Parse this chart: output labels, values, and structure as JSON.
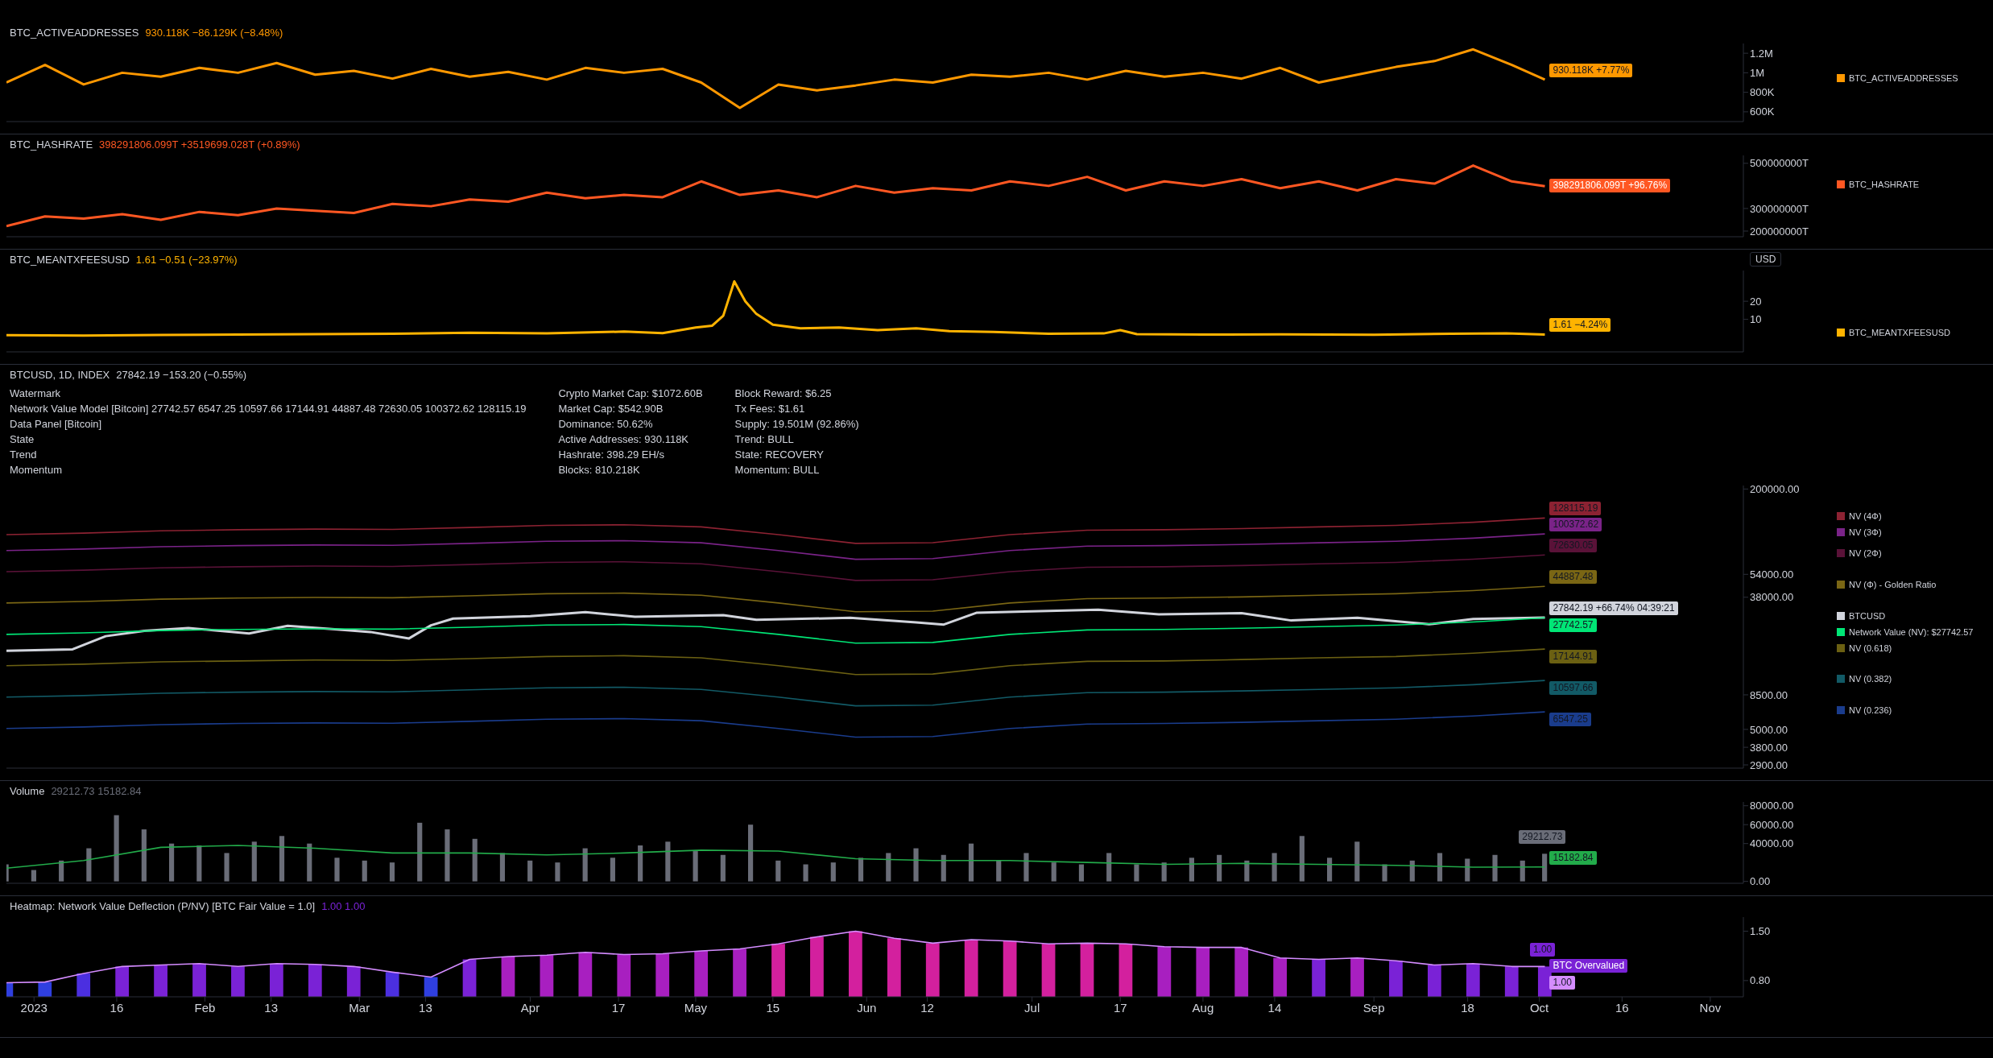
{
  "chart_data": [
    {
      "type": "line",
      "legend": "right",
      "title": "BTC_ACTIVEADDRESSES",
      "subtitle": "930.118K −86.129K (−8.48%)",
      "tick_labels": "y",
      "xlim": [
        "2022-12-27",
        "2023-11-07"
      ],
      "ylim": [
        500000,
        1300000
      ],
      "yticks": [
        {
          "value": 600000,
          "label": "600K"
        },
        {
          "value": 800000,
          "label": "800K"
        },
        {
          "value": 1000000,
          "label": "1M"
        },
        {
          "value": 1200000,
          "label": "1.2M"
        }
      ],
      "x": [
        "2022-12-27",
        "2023-01-03",
        "2023-01-10",
        "2023-01-17",
        "2023-01-24",
        "2023-01-31",
        "2023-02-07",
        "2023-02-14",
        "2023-02-21",
        "2023-02-28",
        "2023-03-07",
        "2023-03-14",
        "2023-03-21",
        "2023-03-28",
        "2023-04-04",
        "2023-04-11",
        "2023-04-18",
        "2023-04-25",
        "2023-05-02",
        "2023-05-09",
        "2023-05-16",
        "2023-05-23",
        "2023-05-30",
        "2023-06-06",
        "2023-06-13",
        "2023-06-20",
        "2023-06-27",
        "2023-07-04",
        "2023-07-11",
        "2023-07-18",
        "2023-07-25",
        "2023-08-01",
        "2023-08-08",
        "2023-08-15",
        "2023-08-22",
        "2023-08-29",
        "2023-09-05",
        "2023-09-12",
        "2023-09-19",
        "2023-09-26",
        "2023-10-02"
      ],
      "series": [
        {
          "name": "BTC_ACTIVEADDRESSES",
          "color": "#ff9800",
          "values": [
            900000,
            1080000,
            880000,
            1000000,
            960000,
            1050000,
            1000000,
            1100000,
            980000,
            1020000,
            940000,
            1040000,
            960000,
            1010000,
            930000,
            1050000,
            1000000,
            1040000,
            900000,
            640000,
            880000,
            820000,
            870000,
            930000,
            900000,
            980000,
            960000,
            1000000,
            930000,
            1020000,
            960000,
            1000000,
            940000,
            1050000,
            900000,
            980000,
            1060000,
            1120000,
            1240000,
            1080000,
            930118
          ],
          "value_labels": [
            null,
            null,
            null,
            null,
            null,
            null,
            null,
            null,
            null,
            null,
            null,
            null,
            null,
            null,
            null,
            null,
            null,
            null,
            null,
            null,
            null,
            null,
            null,
            null,
            null,
            null,
            null,
            null,
            null,
            null,
            null,
            null,
            null,
            null,
            null,
            null,
            null,
            null,
            null,
            null,
            "930.118K +7.77%"
          ]
        }
      ]
    },
    {
      "type": "line",
      "legend": "right",
      "title": "BTC_HASHRATE",
      "subtitle": "398291806.099T +3519699.028T (+0.89%)",
      "tick_labels": "y",
      "xlim": [
        "2022-12-27",
        "2023-11-07"
      ],
      "ylim": [
        175000000,
        535000000
      ],
      "yticks": [
        {
          "value": 200000000,
          "label": "200000000T"
        },
        {
          "value": 300000000,
          "label": "300000000T"
        },
        {
          "value": 500000000,
          "label": "500000000T"
        }
      ],
      "x": [
        "2022-12-27",
        "2023-01-03",
        "2023-01-10",
        "2023-01-17",
        "2023-01-24",
        "2023-01-31",
        "2023-02-07",
        "2023-02-14",
        "2023-02-21",
        "2023-02-28",
        "2023-03-07",
        "2023-03-14",
        "2023-03-21",
        "2023-03-28",
        "2023-04-04",
        "2023-04-11",
        "2023-04-18",
        "2023-04-25",
        "2023-05-02",
        "2023-05-09",
        "2023-05-16",
        "2023-05-23",
        "2023-05-30",
        "2023-06-06",
        "2023-06-13",
        "2023-06-20",
        "2023-06-27",
        "2023-07-04",
        "2023-07-11",
        "2023-07-18",
        "2023-07-25",
        "2023-08-01",
        "2023-08-08",
        "2023-08-15",
        "2023-08-22",
        "2023-08-29",
        "2023-09-05",
        "2023-09-12",
        "2023-09-19",
        "2023-09-26",
        "2023-10-02"
      ],
      "series": [
        {
          "name": "BTC_HASHRATE",
          "color": "#ff5722",
          "values": [
            222000000,
            265000000,
            255000000,
            275000000,
            250000000,
            285000000,
            270000000,
            300000000,
            290000000,
            280000000,
            320000000,
            310000000,
            340000000,
            330000000,
            370000000,
            345000000,
            360000000,
            350000000,
            420000000,
            360000000,
            380000000,
            350000000,
            400000000,
            370000000,
            390000000,
            380000000,
            420000000,
            400000000,
            440000000,
            380000000,
            420000000,
            400000000,
            430000000,
            390000000,
            420000000,
            380000000,
            430000000,
            410000000,
            490000000,
            420000000,
            398291806.099
          ]
        }
      ],
      "annotations": [
        {
          "text": "398291806.099T +96.76%",
          "x": "2023-10-02",
          "y": 398291806.099
        }
      ]
    },
    {
      "type": "line",
      "legend": "right",
      "title": "BTC_MEANTXFEESUSD",
      "subtitle": "1.61 −0.51 (−23.97%)",
      "ylabel": "USD",
      "tick_labels": "y",
      "xlim": [
        "2022-12-27",
        "2023-11-07"
      ],
      "ylim": [
        -8,
        37
      ],
      "yticks": [
        10,
        20
      ],
      "x": [
        "2022-12-27",
        "2023-01-10",
        "2023-01-24",
        "2023-02-07",
        "2023-02-21",
        "2023-03-07",
        "2023-03-21",
        "2023-04-04",
        "2023-04-18",
        "2023-04-25",
        "2023-05-01",
        "2023-05-04",
        "2023-05-06",
        "2023-05-08",
        "2023-05-10",
        "2023-05-12",
        "2023-05-15",
        "2023-05-20",
        "2023-05-27",
        "2023-06-03",
        "2023-06-10",
        "2023-06-16",
        "2023-06-24",
        "2023-07-04",
        "2023-07-14",
        "2023-07-17",
        "2023-07-20",
        "2023-08-01",
        "2023-08-15",
        "2023-09-01",
        "2023-09-15",
        "2023-09-25",
        "2023-10-02"
      ],
      "series": [
        {
          "name": "BTC_MEANTXFEESUSD",
          "color": "#ffb300",
          "values": [
            1.2,
            1.0,
            1.4,
            1.6,
            1.8,
            2.0,
            2.6,
            2.2,
            3.2,
            2.4,
            5.5,
            6.5,
            12,
            31,
            20,
            13,
            7,
            5,
            5.5,
            4,
            5,
            3.5,
            3,
            2,
            2.2,
            4,
            1.8,
            1.6,
            1.7,
            1.5,
            2.0,
            2.2,
            1.61
          ],
          "value_labels": [
            null,
            null,
            null,
            null,
            null,
            null,
            null,
            null,
            null,
            null,
            null,
            null,
            null,
            null,
            null,
            null,
            null,
            null,
            null,
            null,
            null,
            null,
            null,
            null,
            null,
            null,
            null,
            null,
            null,
            null,
            null,
            null,
            "1.61 −4.24%"
          ]
        }
      ]
    },
    {
      "type": "line",
      "legend": "right",
      "title": "BTCUSD, 1D, INDEX",
      "subtitle": "27842.19 −153.20 (−0.55%)",
      "log": true,
      "tick_labels": "y",
      "xlim": [
        "2022-12-27",
        "2023-11-07"
      ],
      "ylim": [
        2760,
        211000
      ],
      "yticks": [
        {
          "value": 2900,
          "label": "2900.00"
        },
        {
          "value": 3800,
          "label": "3800.00"
        },
        {
          "value": 5000,
          "label": "5000.00"
        },
        {
          "value": 8500,
          "label": "8500.00"
        },
        {
          "value": 38000,
          "label": "38000.00"
        },
        {
          "value": 54000,
          "label": "54000.00"
        },
        {
          "value": 200000,
          "label": "200000.00"
        }
      ],
      "x": [
        "2022-12-27",
        "2023-01-10",
        "2023-01-24",
        "2023-02-07",
        "2023-02-21",
        "2023-03-07",
        "2023-03-21",
        "2023-04-04",
        "2023-04-18",
        "2023-05-02",
        "2023-05-16",
        "2023-05-30",
        "2023-06-13",
        "2023-06-27",
        "2023-07-11",
        "2023-07-25",
        "2023-08-08",
        "2023-08-22",
        "2023-09-05",
        "2023-09-19",
        "2023-10-02"
      ],
      "annotations": [
        "Watermark",
        "Network Value Model [Bitcoin] 27742.57 6547.25 10597.66 17144.91 44887.48 72630.05 100372.62 128115.19",
        "Data Panel [Bitcoin]",
        "State",
        "Trend",
        "Momentum",
        "Crypto Market Cap: $1072.60B",
        "Market Cap: $542.90B",
        "Dominance: 50.62%",
        "Active Addresses: 930.118K",
        "Hashrate: 398.29 EH/s",
        "Blocks: 810.218K",
        "Block Reward: $6.25",
        "Tx Fees: $1.61",
        "Supply: 19.501M (92.86%)",
        "Trend: BULL",
        "State: RECOVERY",
        "Momentum: BULL"
      ],
      "series": [
        {
          "name": "BTCUSD",
          "color": "#d1d4dc",
          "x": [
            "2022-12-27",
            "2023-01-08",
            "2023-01-14",
            "2023-01-21",
            "2023-01-29",
            "2023-02-09",
            "2023-02-16",
            "2023-02-25",
            "2023-03-03",
            "2023-03-10",
            "2023-03-14",
            "2023-03-18",
            "2023-04-01",
            "2023-04-11",
            "2023-04-20",
            "2023-04-26",
            "2023-05-06",
            "2023-05-12",
            "2023-05-29",
            "2023-06-10",
            "2023-06-15",
            "2023-06-21",
            "2023-07-01",
            "2023-07-13",
            "2023-07-24",
            "2023-08-08",
            "2023-08-17",
            "2023-08-29",
            "2023-09-11",
            "2023-09-19",
            "2023-10-02"
          ],
          "values": [
            16700,
            17100,
            20900,
            22700,
            23700,
            21800,
            24500,
            23200,
            22300,
            20200,
            24700,
            27400,
            28400,
            30200,
            28200,
            28400,
            28900,
            26900,
            27700,
            25800,
            25000,
            30000,
            30600,
            31400,
            29200,
            29800,
            26600,
            27700,
            25100,
            27200,
            27842.19
          ],
          "value_labels": [
            null,
            null,
            null,
            null,
            null,
            null,
            null,
            null,
            null,
            null,
            null,
            null,
            null,
            null,
            null,
            null,
            null,
            null,
            null,
            null,
            null,
            null,
            null,
            null,
            null,
            null,
            null,
            null,
            null,
            null,
            "27842.19 +66.74% 04:39:21"
          ]
        },
        {
          "name": "NV (4Φ)",
          "color": "#8c2232",
          "values": [
            99300,
            101600,
            105300,
            107100,
            108100,
            107600,
            110800,
            114500,
            115500,
            111800,
            99300,
            86800,
            87700,
            99300,
            106200,
            107100,
            109000,
            111800,
            114500,
            120100,
            128115.19
          ],
          "value_labels": [
            null,
            null,
            null,
            null,
            null,
            null,
            null,
            null,
            null,
            null,
            null,
            null,
            null,
            null,
            null,
            null,
            null,
            null,
            null,
            null,
            "128115.19"
          ]
        },
        {
          "name": "NV (3Φ)",
          "color": "#7a2388",
          "values": [
            77800,
            79600,
            82500,
            83900,
            84700,
            84300,
            86800,
            89700,
            90500,
            87600,
            77800,
            68000,
            68700,
            77800,
            83200,
            83900,
            85400,
            87600,
            89700,
            94100,
            100372.62
          ],
          "value_labels": [
            null,
            null,
            null,
            null,
            null,
            null,
            null,
            null,
            null,
            null,
            null,
            null,
            null,
            null,
            null,
            null,
            null,
            null,
            null,
            null,
            "100372.62"
          ]
        },
        {
          "name": "NV (2Φ)",
          "color": "#5a1238",
          "values": [
            56300,
            57600,
            59700,
            60700,
            61300,
            61000,
            62800,
            64900,
            65500,
            63400,
            56300,
            49200,
            49700,
            56300,
            60200,
            60700,
            61800,
            63400,
            64900,
            68100,
            72630.05
          ],
          "value_labels": [
            null,
            null,
            null,
            null,
            null,
            null,
            null,
            null,
            null,
            null,
            null,
            null,
            null,
            null,
            null,
            null,
            null,
            null,
            null,
            null,
            "72630.05"
          ]
        },
        {
          "name": "NV (Φ) - Golden Ratio",
          "color": "#7a6614",
          "values": [
            34800,
            35600,
            36900,
            37500,
            37900,
            37700,
            38800,
            40100,
            40500,
            39200,
            34800,
            30400,
            30700,
            34800,
            37200,
            37500,
            38200,
            39200,
            40100,
            42100,
            44887.48
          ],
          "value_labels": [
            null,
            null,
            null,
            null,
            null,
            null,
            null,
            null,
            null,
            null,
            null,
            null,
            null,
            null,
            null,
            null,
            null,
            null,
            null,
            null,
            "44887.48"
          ]
        },
        {
          "name": "Network Value (NV): $27742.57",
          "color": "#00e676",
          "values": [
            21500,
            22000,
            22800,
            23200,
            23400,
            23300,
            24000,
            24800,
            25000,
            24200,
            21500,
            18800,
            19000,
            21500,
            23000,
            23200,
            23600,
            24200,
            24800,
            26000,
            27742.57
          ],
          "value_labels": [
            null,
            null,
            null,
            null,
            null,
            null,
            null,
            null,
            null,
            null,
            null,
            null,
            null,
            null,
            null,
            null,
            null,
            null,
            null,
            null,
            "27742.57"
          ]
        },
        {
          "name": "NV (0.618)",
          "color": "#6b6012",
          "values": [
            13300,
            13600,
            14100,
            14300,
            14500,
            14400,
            14800,
            15300,
            15500,
            15000,
            13300,
            11600,
            11700,
            13300,
            14200,
            14300,
            14600,
            15000,
            15300,
            16100,
            17144.91
          ],
          "value_labels": [
            null,
            null,
            null,
            null,
            null,
            null,
            null,
            null,
            null,
            null,
            null,
            null,
            null,
            null,
            null,
            null,
            null,
            null,
            null,
            null,
            "17144.91"
          ]
        },
        {
          "name": "NV (0.382)",
          "color": "#125a66",
          "values": [
            8210,
            8400,
            8710,
            8860,
            8940,
            8900,
            9170,
            9470,
            9550,
            9240,
            8210,
            7180,
            7260,
            8210,
            8790,
            8860,
            9020,
            9240,
            9470,
            9930,
            10597.66
          ],
          "value_labels": [
            null,
            null,
            null,
            null,
            null,
            null,
            null,
            null,
            null,
            null,
            null,
            null,
            null,
            null,
            null,
            null,
            null,
            null,
            null,
            null,
            "10597.66"
          ]
        },
        {
          "name": "NV (0.236)",
          "color": "#1a3c8c",
          "values": [
            5070,
            5190,
            5380,
            5480,
            5520,
            5500,
            5660,
            5850,
            5900,
            5710,
            5070,
            4440,
            4480,
            5070,
            5430,
            5480,
            5570,
            5710,
            5850,
            6140,
            6547.25
          ],
          "value_labels": [
            null,
            null,
            null,
            null,
            null,
            null,
            null,
            null,
            null,
            null,
            null,
            null,
            null,
            null,
            null,
            null,
            null,
            null,
            null,
            null,
            "6547.25"
          ]
        }
      ]
    },
    {
      "type": "bar",
      "title": "Volume",
      "subtitle": "29212.73 15182.84",
      "tick_labels": "y",
      "xlim": [
        "2022-12-27",
        "2023-11-07"
      ],
      "ylim": [
        -2000,
        84000
      ],
      "yticks": [
        {
          "value": 0,
          "label": "0.00"
        },
        {
          "value": 40000,
          "label": "40000.00"
        },
        {
          "value": 60000,
          "label": "60000.00"
        },
        {
          "value": 80000,
          "label": "80000.00"
        }
      ],
      "x": [
        "2022-12-27",
        "2023-01-01",
        "2023-01-06",
        "2023-01-11",
        "2023-01-16",
        "2023-01-21",
        "2023-01-26",
        "2023-01-31",
        "2023-02-05",
        "2023-02-10",
        "2023-02-15",
        "2023-02-20",
        "2023-02-25",
        "2023-03-02",
        "2023-03-07",
        "2023-03-12",
        "2023-03-17",
        "2023-03-22",
        "2023-03-27",
        "2023-04-01",
        "2023-04-06",
        "2023-04-11",
        "2023-04-16",
        "2023-04-21",
        "2023-04-26",
        "2023-05-01",
        "2023-05-06",
        "2023-05-11",
        "2023-05-16",
        "2023-05-21",
        "2023-05-26",
        "2023-05-31",
        "2023-06-05",
        "2023-06-10",
        "2023-06-15",
        "2023-06-20",
        "2023-06-25",
        "2023-06-30",
        "2023-07-05",
        "2023-07-10",
        "2023-07-15",
        "2023-07-20",
        "2023-07-25",
        "2023-07-30",
        "2023-08-04",
        "2023-08-09",
        "2023-08-14",
        "2023-08-19",
        "2023-08-24",
        "2023-08-29",
        "2023-09-03",
        "2023-09-08",
        "2023-09-13",
        "2023-09-18",
        "2023-09-23",
        "2023-09-28",
        "2023-10-02"
      ],
      "series": [
        {
          "color": "#6a6d78",
          "values": [
            18000,
            12000,
            22000,
            35000,
            70000,
            55000,
            40000,
            38000,
            30000,
            42000,
            48000,
            40000,
            25000,
            22000,
            20000,
            62000,
            55000,
            45000,
            30000,
            22000,
            20000,
            35000,
            25000,
            38000,
            42000,
            32000,
            28000,
            60000,
            22000,
            18000,
            20000,
            25000,
            30000,
            35000,
            28000,
            40000,
            22000,
            30000,
            20000,
            18000,
            30000,
            18000,
            20000,
            25000,
            28000,
            22000,
            30000,
            48000,
            25000,
            42000,
            18000,
            22000,
            30000,
            24000,
            28000,
            22000,
            29212.73
          ],
          "value_labels": [
            null,
            null,
            null,
            null,
            null,
            null,
            null,
            null,
            null,
            null,
            null,
            null,
            null,
            null,
            null,
            null,
            null,
            null,
            null,
            null,
            null,
            null,
            null,
            null,
            null,
            null,
            null,
            null,
            null,
            null,
            null,
            null,
            null,
            null,
            null,
            null,
            null,
            null,
            null,
            null,
            null,
            null,
            null,
            null,
            null,
            null,
            null,
            null,
            null,
            null,
            null,
            null,
            null,
            null,
            null,
            null,
            "29212.73"
          ]
        },
        {
          "type": "line",
          "color": "#22ab4a",
          "x": [
            "2022-12-27",
            "2023-01-10",
            "2023-01-24",
            "2023-02-07",
            "2023-02-21",
            "2023-03-07",
            "2023-03-21",
            "2023-04-04",
            "2023-04-18",
            "2023-05-02",
            "2023-05-16",
            "2023-05-30",
            "2023-06-13",
            "2023-06-27",
            "2023-07-11",
            "2023-07-25",
            "2023-08-08",
            "2023-08-22",
            "2023-09-05",
            "2023-09-19",
            "2023-10-02"
          ],
          "values": [
            14000,
            22000,
            36000,
            38000,
            35000,
            30000,
            30000,
            28000,
            30000,
            33000,
            32000,
            24000,
            22000,
            22000,
            20000,
            18000,
            19000,
            18000,
            17000,
            15000,
            15182.84
          ],
          "value_labels": [
            null,
            null,
            null,
            null,
            null,
            null,
            null,
            null,
            null,
            null,
            null,
            null,
            null,
            null,
            null,
            null,
            null,
            null,
            null,
            null,
            "15182.84"
          ]
        }
      ]
    },
    {
      "type": "bar",
      "title": "Heatmap: Network Value Deflection (P/NV) [BTC Fair Value = 1.0]",
      "subtitle": "1.00 1.00",
      "xlim": [
        "2022-12-27",
        "2023-11-07"
      ],
      "xticks": [
        {
          "value": "2023-01-01",
          "label": "2023"
        },
        {
          "value": "2023-01-16",
          "label": "16"
        },
        {
          "value": "2023-02-01",
          "label": "Feb"
        },
        {
          "value": "2023-02-13",
          "label": "13"
        },
        {
          "value": "2023-03-01",
          "label": "Mar"
        },
        {
          "value": "2023-03-13",
          "label": "13"
        },
        {
          "value": "2023-04-01",
          "label": "Apr"
        },
        {
          "value": "2023-04-17",
          "label": "17"
        },
        {
          "value": "2023-05-01",
          "label": "May"
        },
        {
          "value": "2023-05-15",
          "label": "15"
        },
        {
          "value": "2023-06-01",
          "label": "Jun"
        },
        {
          "value": "2023-06-12",
          "label": "12"
        },
        {
          "value": "2023-07-01",
          "label": "Jul"
        },
        {
          "value": "2023-07-17",
          "label": "17"
        },
        {
          "value": "2023-08-01",
          "label": "Aug"
        },
        {
          "value": "2023-08-14",
          "label": "14"
        },
        {
          "value": "2023-09-01",
          "label": "Sep"
        },
        {
          "value": "2023-09-18",
          "label": "18"
        },
        {
          "value": "2023-10-01",
          "label": "Oct"
        },
        {
          "value": "2023-10-16",
          "label": "16"
        },
        {
          "value": "2023-11-01",
          "label": "Nov"
        }
      ],
      "ylim": [
        0.57,
        1.7
      ],
      "yticks": [
        {
          "value": 0.8,
          "label": "0.80"
        },
        {
          "value": 1.5,
          "label": "1.50"
        }
      ],
      "x": [
        "2022-12-27",
        "2023-01-03",
        "2023-01-10",
        "2023-01-17",
        "2023-01-24",
        "2023-01-31",
        "2023-02-07",
        "2023-02-14",
        "2023-02-21",
        "2023-02-28",
        "2023-03-07",
        "2023-03-14",
        "2023-03-21",
        "2023-03-28",
        "2023-04-04",
        "2023-04-11",
        "2023-04-18",
        "2023-04-25",
        "2023-05-02",
        "2023-05-09",
        "2023-05-16",
        "2023-05-23",
        "2023-05-30",
        "2023-06-06",
        "2023-06-13",
        "2023-06-20",
        "2023-06-27",
        "2023-07-04",
        "2023-07-11",
        "2023-07-18",
        "2023-07-25",
        "2023-08-01",
        "2023-08-08",
        "2023-08-15",
        "2023-08-22",
        "2023-08-29",
        "2023-09-05",
        "2023-09-12",
        "2023-09-19",
        "2023-09-26",
        "2023-10-02"
      ],
      "annotations": [
        {
          "text": "BTC Overvalued",
          "x": "2023-10-02",
          "y": 1.0
        }
      ],
      "series": [
        {
          "colors": [
            "#2f3fe0",
            "#2f3fe0",
            "#4b2fe0",
            "#7a22d6",
            "#7a22d6",
            "#7a22d6",
            "#7a22d6",
            "#7a22d6",
            "#7a22d6",
            "#7a22d6",
            "#4b2fe0",
            "#2f3fe0",
            "#7a22d6",
            "#a81fc0",
            "#a81fc0",
            "#a81fc0",
            "#a81fc0",
            "#a81fc0",
            "#a81fc0",
            "#a81fc0",
            "#d3209e",
            "#d3209e",
            "#d3209e",
            "#d3209e",
            "#d3209e",
            "#d3209e",
            "#d3209e",
            "#d3209e",
            "#d3209e",
            "#d3209e",
            "#a81fc0",
            "#a81fc0",
            "#a81fc0",
            "#a81fc0",
            "#7a22d6",
            "#a81fc0",
            "#7a22d6",
            "#7a22d6",
            "#7a22d6",
            "#7a22d6",
            "#7a22d6"
          ],
          "values": [
            0.77,
            0.78,
            0.9,
            1.0,
            1.02,
            1.04,
            1.0,
            1.04,
            1.03,
            1.0,
            0.92,
            0.85,
            1.1,
            1.14,
            1.16,
            1.2,
            1.17,
            1.18,
            1.22,
            1.25,
            1.32,
            1.42,
            1.5,
            1.4,
            1.33,
            1.38,
            1.36,
            1.32,
            1.33,
            1.32,
            1.28,
            1.27,
            1.27,
            1.12,
            1.1,
            1.12,
            1.08,
            1.02,
            1.04,
            1.0,
            1.0
          ],
          "value_labels": [
            null,
            null,
            null,
            null,
            null,
            null,
            null,
            null,
            null,
            null,
            null,
            null,
            null,
            null,
            null,
            null,
            null,
            null,
            null,
            null,
            null,
            null,
            null,
            null,
            null,
            null,
            null,
            null,
            null,
            null,
            null,
            null,
            null,
            null,
            null,
            null,
            null,
            null,
            null,
            null,
            "1.00"
          ]
        },
        {
          "type": "line",
          "color": "#d48cff",
          "values": [
            0.77,
            0.78,
            0.9,
            1.0,
            1.02,
            1.04,
            1.0,
            1.04,
            1.03,
            1.0,
            0.92,
            0.85,
            1.1,
            1.14,
            1.16,
            1.2,
            1.17,
            1.18,
            1.22,
            1.25,
            1.32,
            1.42,
            1.5,
            1.4,
            1.33,
            1.38,
            1.36,
            1.32,
            1.33,
            1.32,
            1.28,
            1.27,
            1.27,
            1.12,
            1.1,
            1.12,
            1.08,
            1.02,
            1.04,
            1.0,
            1.0
          ],
          "value_labels": [
            null,
            null,
            null,
            null,
            null,
            null,
            null,
            null,
            null,
            null,
            null,
            null,
            null,
            null,
            null,
            null,
            null,
            null,
            null,
            null,
            null,
            null,
            null,
            null,
            null,
            null,
            null,
            null,
            null,
            null,
            null,
            null,
            null,
            null,
            null,
            null,
            null,
            null,
            null,
            null,
            "1.00"
          ]
        }
      ]
    }
  ]
}
